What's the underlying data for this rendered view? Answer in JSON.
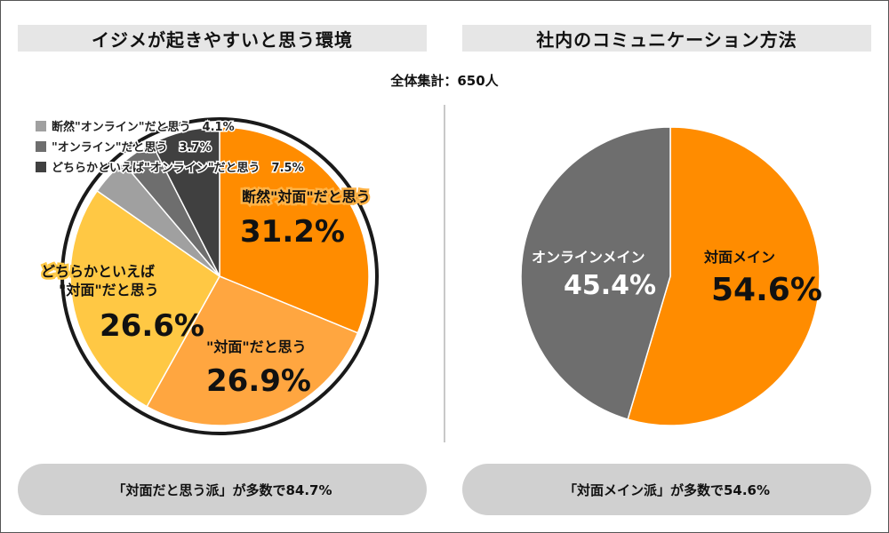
{
  "total_label": "全体集計：650人",
  "chart_data": [
    {
      "type": "pie",
      "title": "イジメが起きやすいと思う環境",
      "slices": [
        {
          "name": "断然\"対面\"だと思う",
          "value": 31.2,
          "value_label": "31.2%",
          "color": "#ff8c00"
        },
        {
          "name": "\"対面\"だと思う",
          "value": 26.9,
          "value_label": "26.9%",
          "color": "#ffa640"
        },
        {
          "name": "どちらかといえば\"対面\"だと思う",
          "value": 26.6,
          "value_label": "26.6%",
          "color": "#ffc844"
        },
        {
          "name": "断然\"オンライン\"だと思う",
          "value": 4.1,
          "value_label": "4.1%",
          "color": "#a0a0a0"
        },
        {
          "name": "\"オンライン\"だと思う",
          "value": 3.7,
          "value_label": "3.7%",
          "color": "#6e6e6e"
        },
        {
          "name": "どちらかといえば\"オンライン\"だと思う",
          "value": 7.5,
          "value_label": "7.5%",
          "color": "#404040"
        }
      ],
      "legend": [
        {
          "text": "断然\"オンライン\"だと思う　4.1%",
          "color": "#a0a0a0"
        },
        {
          "text": "\"オンライン\"だと思う　3.7%",
          "color": "#6e6e6e"
        },
        {
          "text": "どちらかといえば\"オンライン\"だと思う　7.5%",
          "color": "#404040"
        }
      ],
      "labels": {
        "s1_name": "断然\"対面\"だと思う",
        "s2_name": "\"対面\"だと思う",
        "s3_line1": "どちらかといえば",
        "s3_line2": "\"対面\"だと思う"
      },
      "summary": "「対面だと思う派」が多数で84.7%"
    },
    {
      "type": "pie",
      "title": "社内のコミュニケーション方法",
      "slices": [
        {
          "name": "対面メイン",
          "value": 54.6,
          "value_label": "54.6%",
          "color": "#ff8c00"
        },
        {
          "name": "オンラインメイン",
          "value": 45.4,
          "value_label": "45.4%",
          "color": "#6e6e6e"
        }
      ],
      "summary": "「対面メイン派」が多数で54.6%"
    }
  ]
}
